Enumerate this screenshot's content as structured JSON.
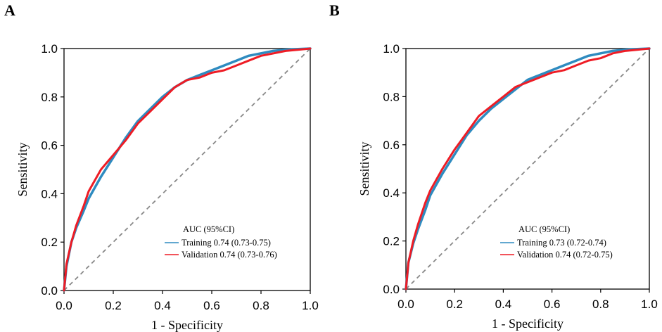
{
  "chart_data": [
    {
      "type": "line",
      "panel": "A",
      "xlabel": "1 - Specificity",
      "ylabel": "Sensitivity",
      "xlim": [
        0,
        1
      ],
      "ylim": [
        0,
        1
      ],
      "xticks": [
        "0.0",
        "0.2",
        "0.4",
        "0.6",
        "0.8",
        "1.0"
      ],
      "yticks": [
        "0.0",
        "0.2",
        "0.4",
        "0.6",
        "0.8",
        "1.0"
      ],
      "legend_title": "AUC (95%CI)",
      "series": [
        {
          "name": "Training 0.74 (0.73-0.75)",
          "color": "#2e8bc0",
          "x": [
            0,
            0.01,
            0.03,
            0.05,
            0.08,
            0.1,
            0.15,
            0.2,
            0.25,
            0.3,
            0.35,
            0.4,
            0.45,
            0.5,
            0.55,
            0.6,
            0.65,
            0.7,
            0.75,
            0.8,
            0.85,
            0.9,
            0.95,
            1.0
          ],
          "y": [
            0,
            0.1,
            0.2,
            0.26,
            0.33,
            0.38,
            0.47,
            0.55,
            0.63,
            0.7,
            0.75,
            0.8,
            0.84,
            0.87,
            0.89,
            0.91,
            0.93,
            0.95,
            0.97,
            0.98,
            0.99,
            0.995,
            0.998,
            1.0
          ]
        },
        {
          "name": "Validation 0.74 (0.73-0.76)",
          "color": "#ee1c25",
          "x": [
            0,
            0.01,
            0.03,
            0.05,
            0.08,
            0.1,
            0.15,
            0.2,
            0.25,
            0.3,
            0.35,
            0.4,
            0.45,
            0.5,
            0.55,
            0.6,
            0.65,
            0.7,
            0.75,
            0.8,
            0.85,
            0.9,
            0.95,
            1.0
          ],
          "y": [
            0,
            0.11,
            0.2,
            0.27,
            0.35,
            0.41,
            0.5,
            0.56,
            0.62,
            0.69,
            0.74,
            0.79,
            0.84,
            0.87,
            0.88,
            0.9,
            0.91,
            0.93,
            0.95,
            0.97,
            0.98,
            0.99,
            0.995,
            1.0
          ]
        }
      ]
    },
    {
      "type": "line",
      "panel": "B",
      "xlabel": "1 - Specificity",
      "ylabel": "Sensitivity",
      "xlim": [
        0,
        1
      ],
      "ylim": [
        0,
        1
      ],
      "xticks": [
        "0.0",
        "0.2",
        "0.4",
        "0.6",
        "0.8",
        "1.0"
      ],
      "yticks": [
        "0.0",
        "0.2",
        "0.4",
        "0.6",
        "0.8",
        "1.0"
      ],
      "legend_title": "AUC (95%CI)",
      "series": [
        {
          "name": "Training 0.73 (0.72-0.74)",
          "color": "#2e8bc0",
          "x": [
            0,
            0.01,
            0.03,
            0.05,
            0.08,
            0.1,
            0.15,
            0.2,
            0.25,
            0.3,
            0.35,
            0.4,
            0.45,
            0.5,
            0.55,
            0.6,
            0.65,
            0.7,
            0.75,
            0.8,
            0.85,
            0.9,
            0.95,
            1.0
          ],
          "y": [
            0,
            0.11,
            0.19,
            0.25,
            0.33,
            0.39,
            0.48,
            0.56,
            0.64,
            0.7,
            0.75,
            0.79,
            0.83,
            0.87,
            0.89,
            0.91,
            0.93,
            0.95,
            0.97,
            0.98,
            0.99,
            0.995,
            0.998,
            1.0
          ]
        },
        {
          "name": "Validation 0.74 (0.72-0.75)",
          "color": "#ee1c25",
          "x": [
            0,
            0.01,
            0.03,
            0.05,
            0.08,
            0.1,
            0.15,
            0.2,
            0.25,
            0.3,
            0.35,
            0.4,
            0.45,
            0.5,
            0.55,
            0.6,
            0.65,
            0.7,
            0.75,
            0.8,
            0.85,
            0.9,
            0.95,
            1.0
          ],
          "y": [
            0,
            0.11,
            0.2,
            0.27,
            0.36,
            0.41,
            0.5,
            0.58,
            0.65,
            0.72,
            0.76,
            0.8,
            0.84,
            0.86,
            0.88,
            0.9,
            0.91,
            0.93,
            0.95,
            0.96,
            0.98,
            0.99,
            0.995,
            1.0
          ]
        }
      ]
    }
  ]
}
